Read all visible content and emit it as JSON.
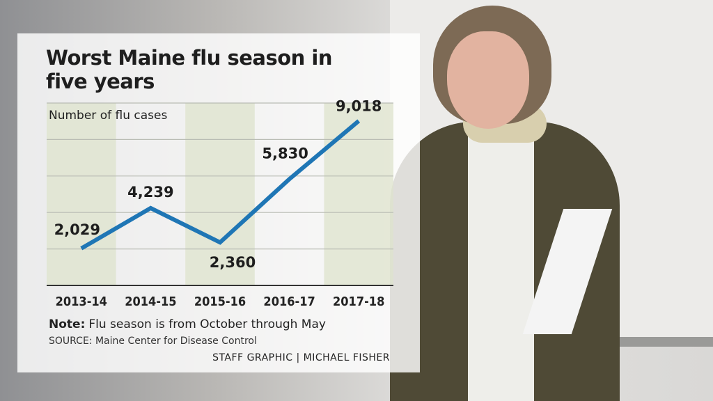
{
  "chart_data": {
    "type": "line",
    "title": "Worst Maine flu season in five years",
    "y_label": "Number of flu cases",
    "categories": [
      "2013-14",
      "2014-15",
      "2015-16",
      "2016-17",
      "2017-18"
    ],
    "series": [
      {
        "name": "Flu cases",
        "color": "#1f76b5",
        "values": [
          2029,
          4239,
          2360,
          5830,
          9018
        ],
        "value_labels": [
          "2,029",
          "4,239",
          "2,360",
          "5,830",
          "9,018"
        ]
      }
    ],
    "ylim": [
      0,
      10000
    ],
    "yticks": [
      0,
      2000,
      4000,
      6000,
      8000,
      10000
    ],
    "grid": true,
    "note": {
      "label": "Note:",
      "text": "Flu season is from October through May"
    },
    "source": "SOURCE: Maine Center for Disease Control",
    "credit": "STAFF GRAPHIC | MICHAEL FISHER"
  }
}
